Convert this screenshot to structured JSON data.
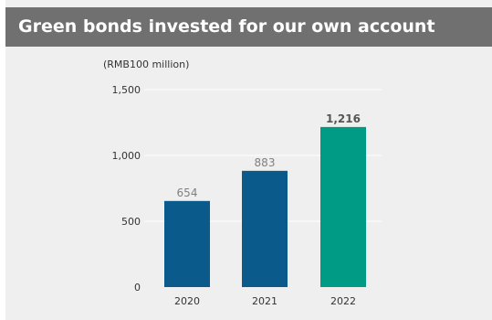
{
  "title": "Green bonds invested for our own account",
  "unit": "(RMB100 million)",
  "colors": {
    "title_bg": "#707070",
    "panel_bg": "#efefef",
    "bar_default": "#0a5a8c",
    "bar_highlight": "#009b84",
    "grid": "#ffffff"
  },
  "chart_data": {
    "type": "bar",
    "categories": [
      "2020",
      "2021",
      "2022"
    ],
    "values": [
      654,
      883,
      1216
    ],
    "data_labels": [
      "654",
      "883",
      "1,216"
    ],
    "highlight_index": 2,
    "ylim": [
      0,
      1500
    ],
    "yticks": [
      0,
      500,
      1000,
      1500
    ],
    "ytick_labels": [
      "0",
      "500",
      "1,000",
      "1,500"
    ],
    "grid": true
  }
}
